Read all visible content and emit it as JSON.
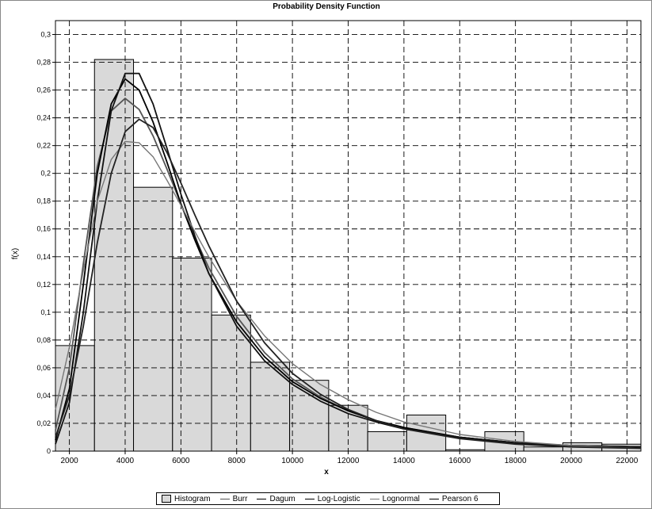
{
  "chart_data": {
    "type": "histogram",
    "title": "Probability Density Function",
    "xlabel": "x",
    "ylabel": "f(x)",
    "xlim": [
      1500,
      22500
    ],
    "ylim": [
      0,
      0.31
    ],
    "grid": true,
    "legend_placement": "bottom",
    "x_ticks": [
      2000,
      4000,
      6000,
      8000,
      10000,
      12000,
      14000,
      16000,
      18000,
      20000,
      22000
    ],
    "x_tick_labels": [
      "2000",
      "4000",
      "6000",
      "8000",
      "10000",
      "12000",
      "14000",
      "16000",
      "18000",
      "20000",
      "22000"
    ],
    "y_ticks": [
      0,
      0.02,
      0.04,
      0.06,
      0.08,
      0.1,
      0.12,
      0.14,
      0.16,
      0.18,
      0.2,
      0.22,
      0.24,
      0.26,
      0.28,
      0.3
    ],
    "y_tick_labels": [
      "0",
      "0,02",
      "0,04",
      "0,06",
      "0,08",
      "0,1",
      "0,12",
      "0,14",
      "0,16",
      "0,18",
      "0,2",
      "0,22",
      "0,24",
      "0,26",
      "0,28",
      "0,3"
    ],
    "histogram": {
      "name": "Histogram",
      "bin_edges": [
        1500,
        2900,
        4300,
        5700,
        7100,
        8500,
        9900,
        11300,
        12700,
        14100,
        15500,
        16900,
        18300,
        19700,
        21100,
        22500
      ],
      "values": [
        0.076,
        0.282,
        0.19,
        0.139,
        0.098,
        0.064,
        0.051,
        0.033,
        0.014,
        0.026,
        0.001,
        0.014,
        0.003,
        0.006,
        0.005
      ]
    },
    "series": [
      {
        "name": "Burr",
        "x": [
          1500,
          2000,
          2500,
          3000,
          3500,
          4000,
          4500,
          5000,
          5500,
          6000,
          6500,
          7000,
          8000,
          9000,
          10000,
          11000,
          12000,
          13000,
          14000,
          16000,
          18000,
          20000,
          22500
        ],
        "values": [
          0.015,
          0.06,
          0.135,
          0.205,
          0.245,
          0.254,
          0.246,
          0.227,
          0.203,
          0.178,
          0.154,
          0.132,
          0.097,
          0.071,
          0.052,
          0.039,
          0.029,
          0.022,
          0.017,
          0.01,
          0.006,
          0.004,
          0.003
        ]
      },
      {
        "name": "Dagum",
        "x": [
          1500,
          2000,
          2500,
          3000,
          3500,
          4000,
          4500,
          5000,
          5500,
          6000,
          6500,
          7000,
          8000,
          9000,
          10000,
          11000,
          12000,
          13000,
          14000,
          16000,
          18000,
          20000,
          22500
        ],
        "values": [
          0.008,
          0.045,
          0.12,
          0.2,
          0.25,
          0.268,
          0.26,
          0.237,
          0.208,
          0.178,
          0.152,
          0.128,
          0.093,
          0.068,
          0.05,
          0.038,
          0.029,
          0.022,
          0.017,
          0.01,
          0.006,
          0.004,
          0.003
        ]
      },
      {
        "name": "Log-Logistic",
        "x": [
          1500,
          2000,
          2500,
          3000,
          3500,
          4000,
          4500,
          5000,
          5500,
          6000,
          6500,
          7000,
          8000,
          9000,
          10000,
          11000,
          12000,
          13000,
          14000,
          16000,
          18000,
          20000,
          22500
        ],
        "values": [
          0.005,
          0.035,
          0.1,
          0.18,
          0.245,
          0.272,
          0.272,
          0.25,
          0.218,
          0.185,
          0.155,
          0.128,
          0.09,
          0.065,
          0.048,
          0.036,
          0.027,
          0.021,
          0.016,
          0.01,
          0.006,
          0.004,
          0.003
        ]
      },
      {
        "name": "Lognormal",
        "x": [
          1500,
          2000,
          2500,
          3000,
          3500,
          4000,
          4500,
          5000,
          5500,
          6000,
          6500,
          7000,
          8000,
          9000,
          10000,
          11000,
          12000,
          13000,
          14000,
          16000,
          18000,
          20000,
          22500
        ],
        "values": [
          0.03,
          0.075,
          0.13,
          0.18,
          0.21,
          0.223,
          0.222,
          0.212,
          0.195,
          0.177,
          0.158,
          0.14,
          0.108,
          0.083,
          0.063,
          0.048,
          0.037,
          0.028,
          0.021,
          0.012,
          0.007,
          0.004,
          0.002
        ]
      },
      {
        "name": "Pearson 6",
        "x": [
          1500,
          2000,
          2500,
          3000,
          3500,
          4000,
          4500,
          5000,
          5500,
          6000,
          6500,
          7000,
          8000,
          9000,
          10000,
          11000,
          12000,
          13000,
          14000,
          16000,
          18000,
          20000,
          22500
        ],
        "values": [
          0.01,
          0.04,
          0.09,
          0.15,
          0.2,
          0.23,
          0.239,
          0.233,
          0.215,
          0.193,
          0.17,
          0.148,
          0.108,
          0.078,
          0.056,
          0.041,
          0.03,
          0.022,
          0.016,
          0.009,
          0.005,
          0.003,
          0.002
        ]
      }
    ],
    "series_colors": [
      "#555555",
      "#000000",
      "#111111",
      "#777777",
      "#222222"
    ],
    "histogram_fill": "#d9d9d9"
  }
}
